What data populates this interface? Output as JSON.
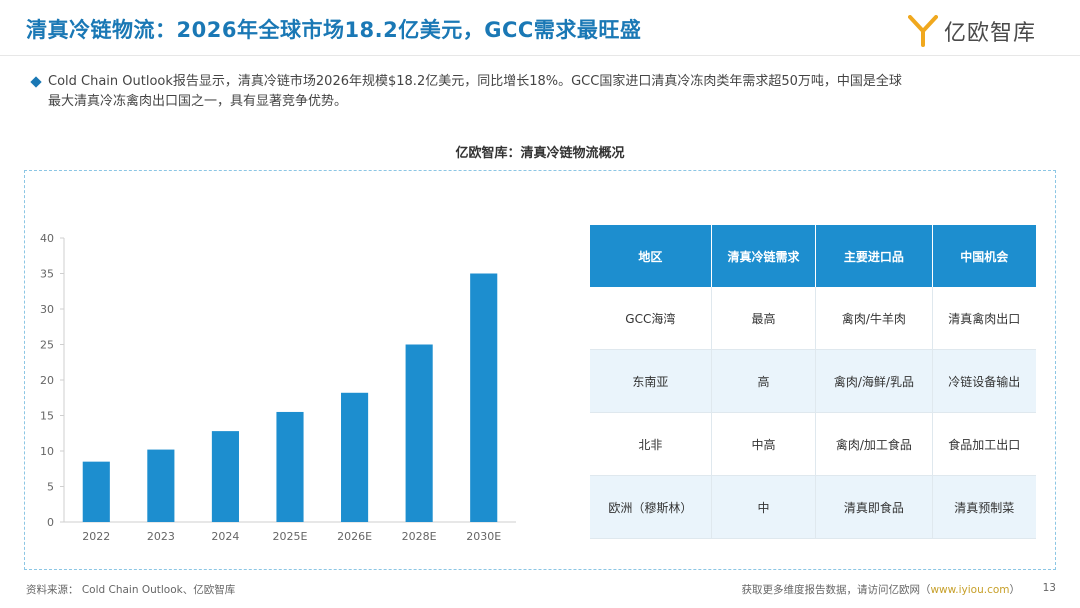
{
  "header": {
    "title": "清真冷链物流：2026年全球市场18.2亿美元，GCC需求最旺盛",
    "logo_text": "亿欧智库",
    "logo_color": "#f0a81e"
  },
  "bullet": {
    "line1": "Cold Chain Outlook报告显示，清真冷链市场2026年规模$18.2亿美元，同比增长18%。GCC国家进口清真冷冻肉类年需求超50万吨，中国是全球",
    "line2": "最大清真冷冻禽肉出口国之一，具有显著竞争优势。"
  },
  "section_title": "亿欧智库：清真冷链物流概况",
  "chart_data": {
    "type": "bar",
    "categories": [
      "2022",
      "2023",
      "2024",
      "2025E",
      "2026E",
      "2028E",
      "2030E"
    ],
    "values": [
      8.5,
      10.2,
      12.8,
      15.5,
      18.2,
      25.0,
      35.0
    ],
    "ylim": [
      0,
      40
    ],
    "yticks": [
      "0",
      "5",
      "10",
      "15",
      "20",
      "25",
      "30",
      "35",
      "40"
    ],
    "grid": false,
    "bar_color": "#1d8ecf",
    "title": "",
    "xlabel": "",
    "ylabel": ""
  },
  "table": {
    "headers": [
      "地区",
      "清真冷链需求",
      "主要进口品",
      "中国机会"
    ],
    "rows": [
      [
        "GCC海湾",
        "最高",
        "禽肉/牛羊肉",
        "清真禽肉出口"
      ],
      [
        "东南亚",
        "高",
        "禽肉/海鲜/乳品",
        "冷链设备输出"
      ],
      [
        "北非",
        "中高",
        "禽肉/加工食品",
        "食品加工出口"
      ],
      [
        "欧洲（穆斯林）",
        "中",
        "清真即食品",
        "清真预制菜"
      ]
    ],
    "header_color": "#1d8ecf",
    "alt_row_color": "#eaf4fb"
  },
  "footer": {
    "source": "资料来源：   Cold Chain Outlook、亿欧智库",
    "more_text": "获取更多维度报告数据，请访问亿欧网（",
    "url": "www.iyiou.com",
    "more_tail": "）",
    "page": "13"
  },
  "colors": {
    "title_blue": "#1a78b5",
    "accent_blue": "#1d8ecf",
    "panel_border": "#8cc6e4"
  }
}
